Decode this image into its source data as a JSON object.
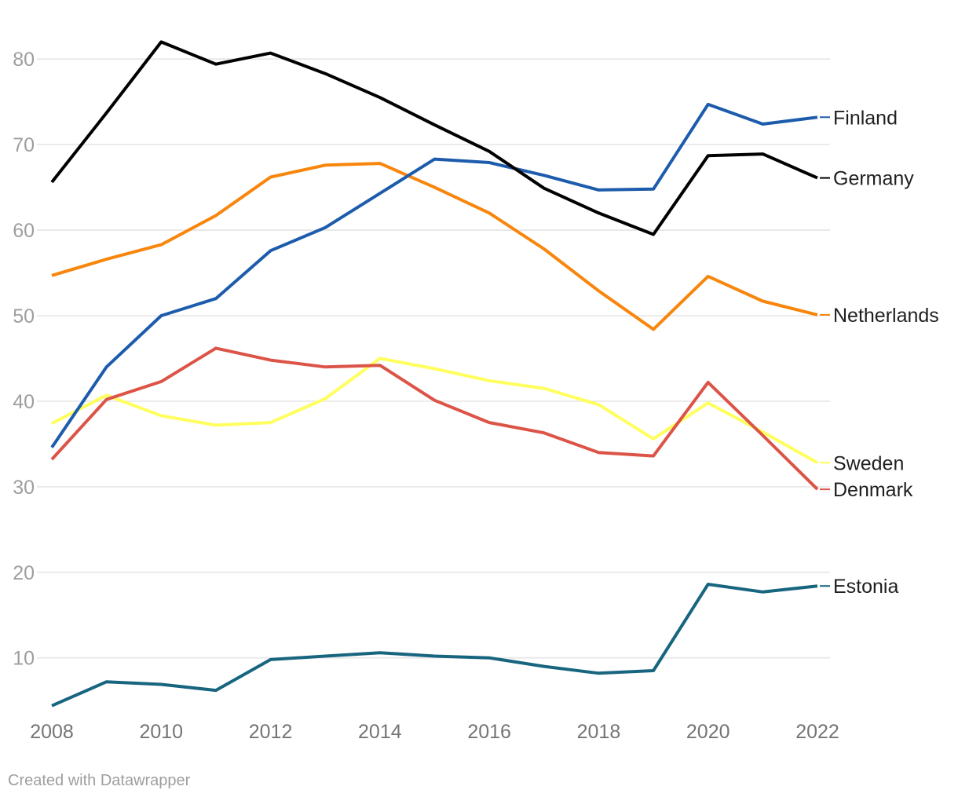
{
  "chart_data": {
    "type": "line",
    "x": [
      2008,
      2009,
      2010,
      2011,
      2012,
      2013,
      2014,
      2015,
      2016,
      2017,
      2018,
      2019,
      2020,
      2021,
      2022
    ],
    "series": [
      {
        "name": "Sweden",
        "color": "#ffff5e",
        "values": [
          37.4,
          40.7,
          38.3,
          37.2,
          37.5,
          40.3,
          45.0,
          43.8,
          42.4,
          41.5,
          39.6,
          35.6,
          39.8,
          36.4,
          32.8
        ]
      },
      {
        "name": "Denmark",
        "color": "#dc5447",
        "values": [
          33.2,
          40.2,
          42.3,
          46.2,
          44.8,
          44.0,
          44.2,
          40.1,
          37.5,
          36.3,
          34.0,
          33.6,
          42.2,
          36.0,
          29.7
        ]
      },
      {
        "name": "Netherlands",
        "color": "#f8860c",
        "values": [
          54.7,
          56.6,
          58.3,
          61.7,
          66.2,
          67.6,
          67.8,
          65.0,
          62.0,
          57.8,
          52.9,
          48.4,
          54.6,
          51.7,
          50.1
        ]
      },
      {
        "name": "Finland",
        "color": "#1d5cac",
        "values": [
          34.6,
          44.0,
          50.0,
          52.0,
          57.6,
          60.3,
          64.3,
          68.3,
          67.9,
          66.4,
          64.7,
          64.8,
          74.7,
          72.4,
          73.2
        ]
      },
      {
        "name": "Germany",
        "color": "#000000",
        "values": [
          65.6,
          73.7,
          82.0,
          79.4,
          80.7,
          78.3,
          75.5,
          72.3,
          69.2,
          64.9,
          62.0,
          59.5,
          68.7,
          68.9,
          66.1
        ]
      },
      {
        "name": "Estonia",
        "color": "#18657f",
        "values": [
          4.4,
          7.2,
          6.9,
          6.2,
          9.8,
          10.2,
          10.6,
          10.2,
          10.0,
          9.0,
          8.2,
          8.5,
          18.6,
          17.7,
          18.4
        ]
      }
    ],
    "yticks": [
      80,
      70,
      60,
      50,
      40,
      30,
      20,
      10
    ],
    "xticks": [
      2008,
      2010,
      2012,
      2014,
      2016,
      2018,
      2020,
      2022
    ],
    "ylim": [
      4,
      82
    ],
    "xlabel": "",
    "ylabel": "",
    "title": "",
    "grid": "horizontal",
    "legend_position": "right-of-line-ends"
  },
  "style": {
    "grid_color": "#e8e8e8",
    "y_tick_color": "#9e9e9e",
    "x_tick_color": "#757575",
    "series_label_color": "#1f1f1f"
  },
  "footer": {
    "credit": "Created with Datawrapper"
  }
}
